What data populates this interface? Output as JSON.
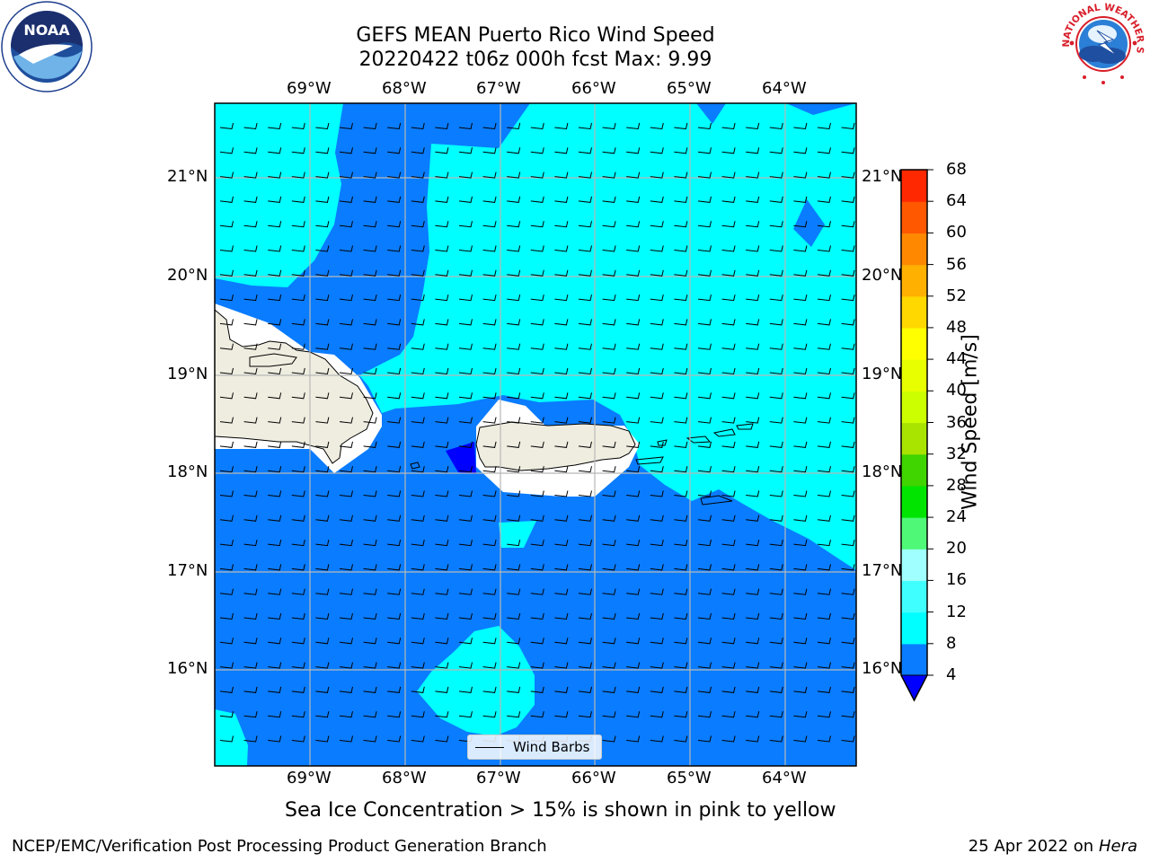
{
  "title_line1": "GEFS MEAN Puerto Rico Wind Speed",
  "title_line2": "20220422 t06z 000h fcst   Max: 9.99",
  "subtitle": "Sea Ice Concentration > 15% is shown in pink to yellow",
  "footer_left": "NCEP/EMC/Verification Post Processing Product Generation Branch",
  "footer_date": "25 Apr 2022 on ",
  "footer_machine": "Hera",
  "logos": {
    "left": "noaa-logo",
    "right": "nws-logo"
  },
  "map": {
    "lon_range": [
      -70.0,
      -63.25
    ],
    "lat_range": [
      15.0,
      21.75
    ],
    "lon_labels": [
      "69°W",
      "68°W",
      "67°W",
      "66°W",
      "65°W",
      "64°W"
    ],
    "lat_labels": [
      "21°N",
      "20°N",
      "19°N",
      "18°N",
      "17°N",
      "16°N"
    ],
    "legend_label": "Wind Barbs",
    "grid": true
  },
  "colorbar": {
    "label": "Wind Speed [m/s]",
    "ticks": [
      "68",
      "64",
      "60",
      "56",
      "52",
      "48",
      "44",
      "40",
      "36",
      "32",
      "28",
      "24",
      "20",
      "16",
      "12",
      "8",
      "4"
    ],
    "levels": [
      4,
      8,
      12,
      16,
      20,
      24,
      28,
      32,
      36,
      40,
      44,
      48,
      52,
      56,
      60,
      64,
      68
    ],
    "colors": [
      "#0a7cff",
      "#00ffff",
      "#40ffff",
      "#a0ffff",
      "#50f878",
      "#00e400",
      "#40d400",
      "#a8e400",
      "#ccff00",
      "#e8ff00",
      "#ffff00",
      "#ffd800",
      "#ffb000",
      "#ff8800",
      "#ff5800",
      "#ff2800",
      "#ff0000"
    ],
    "under_color": "#0000ff"
  },
  "chart_data": {
    "type": "heatmap",
    "title": "GEFS MEAN Puerto Rico Wind Speed",
    "subtitle": "20220422 t06z 000h fcst   Max: 9.99",
    "max_value": 9.99,
    "units": "m/s",
    "colorbar_label": "Wind Speed [m/s]",
    "xlim": [
      -70.0,
      -63.25
    ],
    "ylim": [
      15.0,
      21.75
    ],
    "regions": [
      {
        "level": "8-12",
        "description": "northwest corner"
      },
      {
        "level": "4-8",
        "description": "Mona Passage and Caribbean south"
      },
      {
        "level": "8-12",
        "description": "northeast Atlantic and Virgin Islands"
      },
      {
        "level": "<4",
        "description": "west of Puerto Rico"
      }
    ]
  }
}
